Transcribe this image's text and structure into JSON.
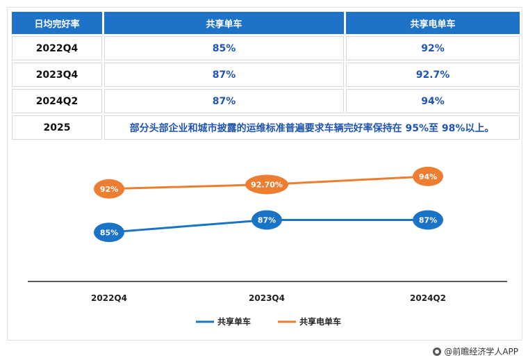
{
  "table": {
    "headers": [
      "日均完好率",
      "共享单车",
      "共享电单车"
    ],
    "rows": [
      {
        "label": "2022Q4",
        "bike": "85%",
        "ebike": "92%"
      },
      {
        "label": "2023Q4",
        "bike": "87%",
        "ebike": "92.7%"
      },
      {
        "label": "2024Q2",
        "bike": "87%",
        "ebike": "94%"
      }
    ],
    "note_row": {
      "label": "2025",
      "text": "部分头部企业和城市披露的运维标准普遍要求车辆完好率保持在 95%至 98%以上。"
    }
  },
  "chart_data": {
    "type": "line",
    "categories": [
      "2022Q4",
      "2023Q4",
      "2024Q2"
    ],
    "series": [
      {
        "name": "共享单车",
        "values": [
          85,
          87,
          87
        ],
        "labels": [
          "85%",
          "87%",
          "87%"
        ],
        "color": "#1a73c4"
      },
      {
        "name": "共享电单车",
        "values": [
          92,
          92.7,
          94
        ],
        "labels": [
          "92%",
          "92.70%",
          "94%"
        ],
        "color": "#ed7d31"
      }
    ],
    "ylim": [
      80,
      96
    ],
    "grid": false,
    "legend_position": "bottom"
  },
  "source": {
    "text": "@前瞻经济学人APP"
  }
}
